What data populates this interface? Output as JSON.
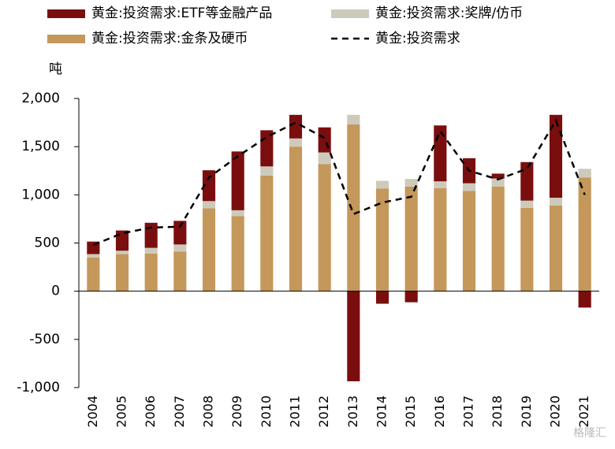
{
  "chart_data": {
    "type": "stacked_bar_line",
    "y_label": "吨",
    "watermark": "格隆汇",
    "categories": [
      "2004",
      "2005",
      "2006",
      "2007",
      "2008",
      "2009",
      "2010",
      "2011",
      "2012",
      "2013",
      "2014",
      "2015",
      "2016",
      "2017",
      "2018",
      "2019",
      "2020",
      "2021"
    ],
    "series": [
      {
        "name": "黄金:投资需求:金条及硬币",
        "color": "#c4975a",
        "kind": "bar",
        "values": [
          350,
          385,
          390,
          410,
          860,
          780,
          1200,
          1500,
          1320,
          1730,
          1065,
          1085,
          1070,
          1040,
          1085,
          865,
          890,
          1180
        ]
      },
      {
        "name": "黄金:投资需求:奖牌/仿币",
        "color": "#cdcabb",
        "kind": "bar",
        "values": [
          35,
          35,
          60,
          75,
          75,
          60,
          95,
          85,
          120,
          100,
          80,
          80,
          70,
          80,
          85,
          75,
          80,
          90
        ]
      },
      {
        "name": "黄金:投资需求:ETF等金融产品",
        "color": "#7a0e0e",
        "kind": "bar",
        "values": [
          130,
          210,
          260,
          245,
          320,
          610,
          375,
          245,
          260,
          -935,
          -130,
          -115,
          580,
          260,
          50,
          400,
          860,
          -170
        ]
      },
      {
        "name": "黄金:投资需求",
        "color": "#000000",
        "kind": "line",
        "values": [
          480,
          600,
          660,
          670,
          1180,
          1400,
          1600,
          1750,
          1590,
          800,
          920,
          980,
          1660,
          1250,
          1160,
          1270,
          1770,
          1000
        ]
      }
    ],
    "ylim": [
      -1000,
      2000
    ],
    "yticks": [
      {
        "value": -1000,
        "label": "-1,000"
      },
      {
        "value": -500,
        "label": "-500"
      },
      0,
      500,
      {
        "value": 1000,
        "label": "1,000"
      },
      {
        "value": 1500,
        "label": "1,500"
      },
      {
        "value": 2000,
        "label": "2,000"
      }
    ]
  }
}
